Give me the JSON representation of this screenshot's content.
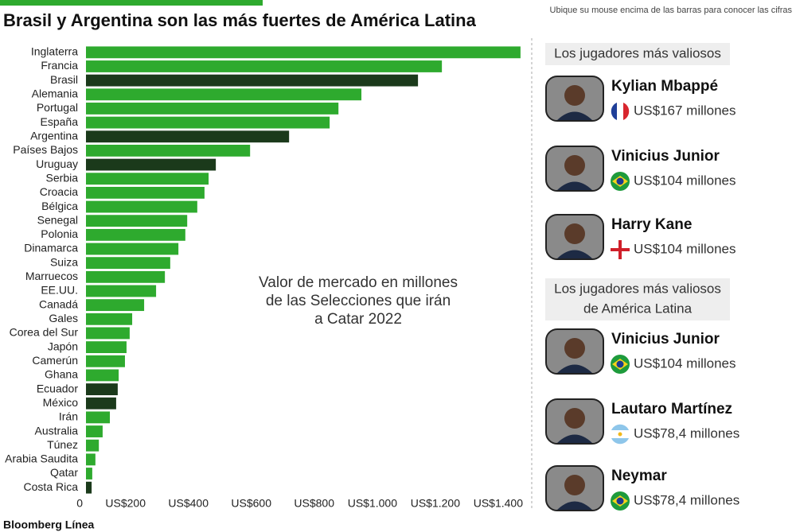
{
  "chart_data": {
    "type": "bar",
    "orientation": "horizontal",
    "title": "Brasil y Argentina son las más fuertes de América Latina",
    "subtitle": "Ubique su mouse encima de las barras para conocer las cifras",
    "annotation": [
      "Valor de mercado en millones",
      "de las Selecciones que irán",
      "a Catar 2022"
    ],
    "source": "Bloomberg Línea",
    "categories": [
      "Inglaterra",
      "Francia",
      "Brasil",
      "Alemania",
      "Portugal",
      "España",
      "Argentina",
      "Países Bajos",
      "Uruguay",
      "Serbia",
      "Croacia",
      "Bélgica",
      "Senegal",
      "Polonia",
      "Dinamarca",
      "Suiza",
      "Marruecos",
      "EE.UU.",
      "Canadá",
      "Gales",
      "Corea del Sur",
      "Japón",
      "Camerún",
      "Ghana",
      "Ecuador",
      "México",
      "Irán",
      "Australia",
      "Túnez",
      "Arabia Saudita",
      "Qatar",
      "Costa Rica"
    ],
    "values": [
      1382,
      1132,
      1056,
      876,
      803,
      775,
      646,
      522,
      413,
      390,
      377,
      354,
      322,
      316,
      294,
      268,
      251,
      223,
      185,
      147,
      139,
      129,
      124,
      104,
      101,
      96,
      76,
      53,
      41,
      30,
      20,
      18
    ],
    "colors": [
      "#2eaa2e",
      "#2eaa2e",
      "#1b3a1b",
      "#2eaa2e",
      "#2eaa2e",
      "#2eaa2e",
      "#1b3a1b",
      "#2eaa2e",
      "#1b3a1b",
      "#2eaa2e",
      "#2eaa2e",
      "#2eaa2e",
      "#2eaa2e",
      "#2eaa2e",
      "#2eaa2e",
      "#2eaa2e",
      "#2eaa2e",
      "#2eaa2e",
      "#2eaa2e",
      "#2eaa2e",
      "#2eaa2e",
      "#2eaa2e",
      "#2eaa2e",
      "#2eaa2e",
      "#1b3a1b",
      "#1b3a1b",
      "#2eaa2e",
      "#2eaa2e",
      "#2eaa2e",
      "#2eaa2e",
      "#2eaa2e",
      "#1b3a1b"
    ],
    "xlim": [
      0,
      1400
    ],
    "xticks": [
      0,
      {
        "value": 200,
        "label": "US$200"
      },
      {
        "value": 400,
        "label": "US$400"
      },
      {
        "value": 600,
        "label": "US$600"
      },
      {
        "value": 800,
        "label": "US$800"
      },
      {
        "value": 1000,
        "label": "US$1.000"
      },
      {
        "value": 1200,
        "label": "US$1.200"
      },
      {
        "value": 1400,
        "label": "US$1.400"
      }
    ],
    "grid": false
  },
  "panel": [
    {
      "heading": [
        "Los jugadores más valiosos"
      ],
      "players": [
        {
          "name": "Kylian Mbappé",
          "value": "US$167 millones",
          "flag": "fr"
        },
        {
          "name": "Vinicius Junior",
          "value": "US$104 millones",
          "flag": "br"
        },
        {
          "name": "Harry Kane",
          "value": "US$104 millones",
          "flag": "en"
        }
      ]
    },
    {
      "heading": [
        "Los jugadores más valiosos",
        "de América Latina"
      ],
      "players": [
        {
          "name": "Vinicius Junior",
          "value": "US$104 millones",
          "flag": "br"
        },
        {
          "name": "Lautaro Martínez",
          "value": "US$78,4 millones",
          "flag": "ar"
        },
        {
          "name": "Neymar",
          "value": "US$78,4 millones",
          "flag": "br"
        }
      ]
    }
  ]
}
